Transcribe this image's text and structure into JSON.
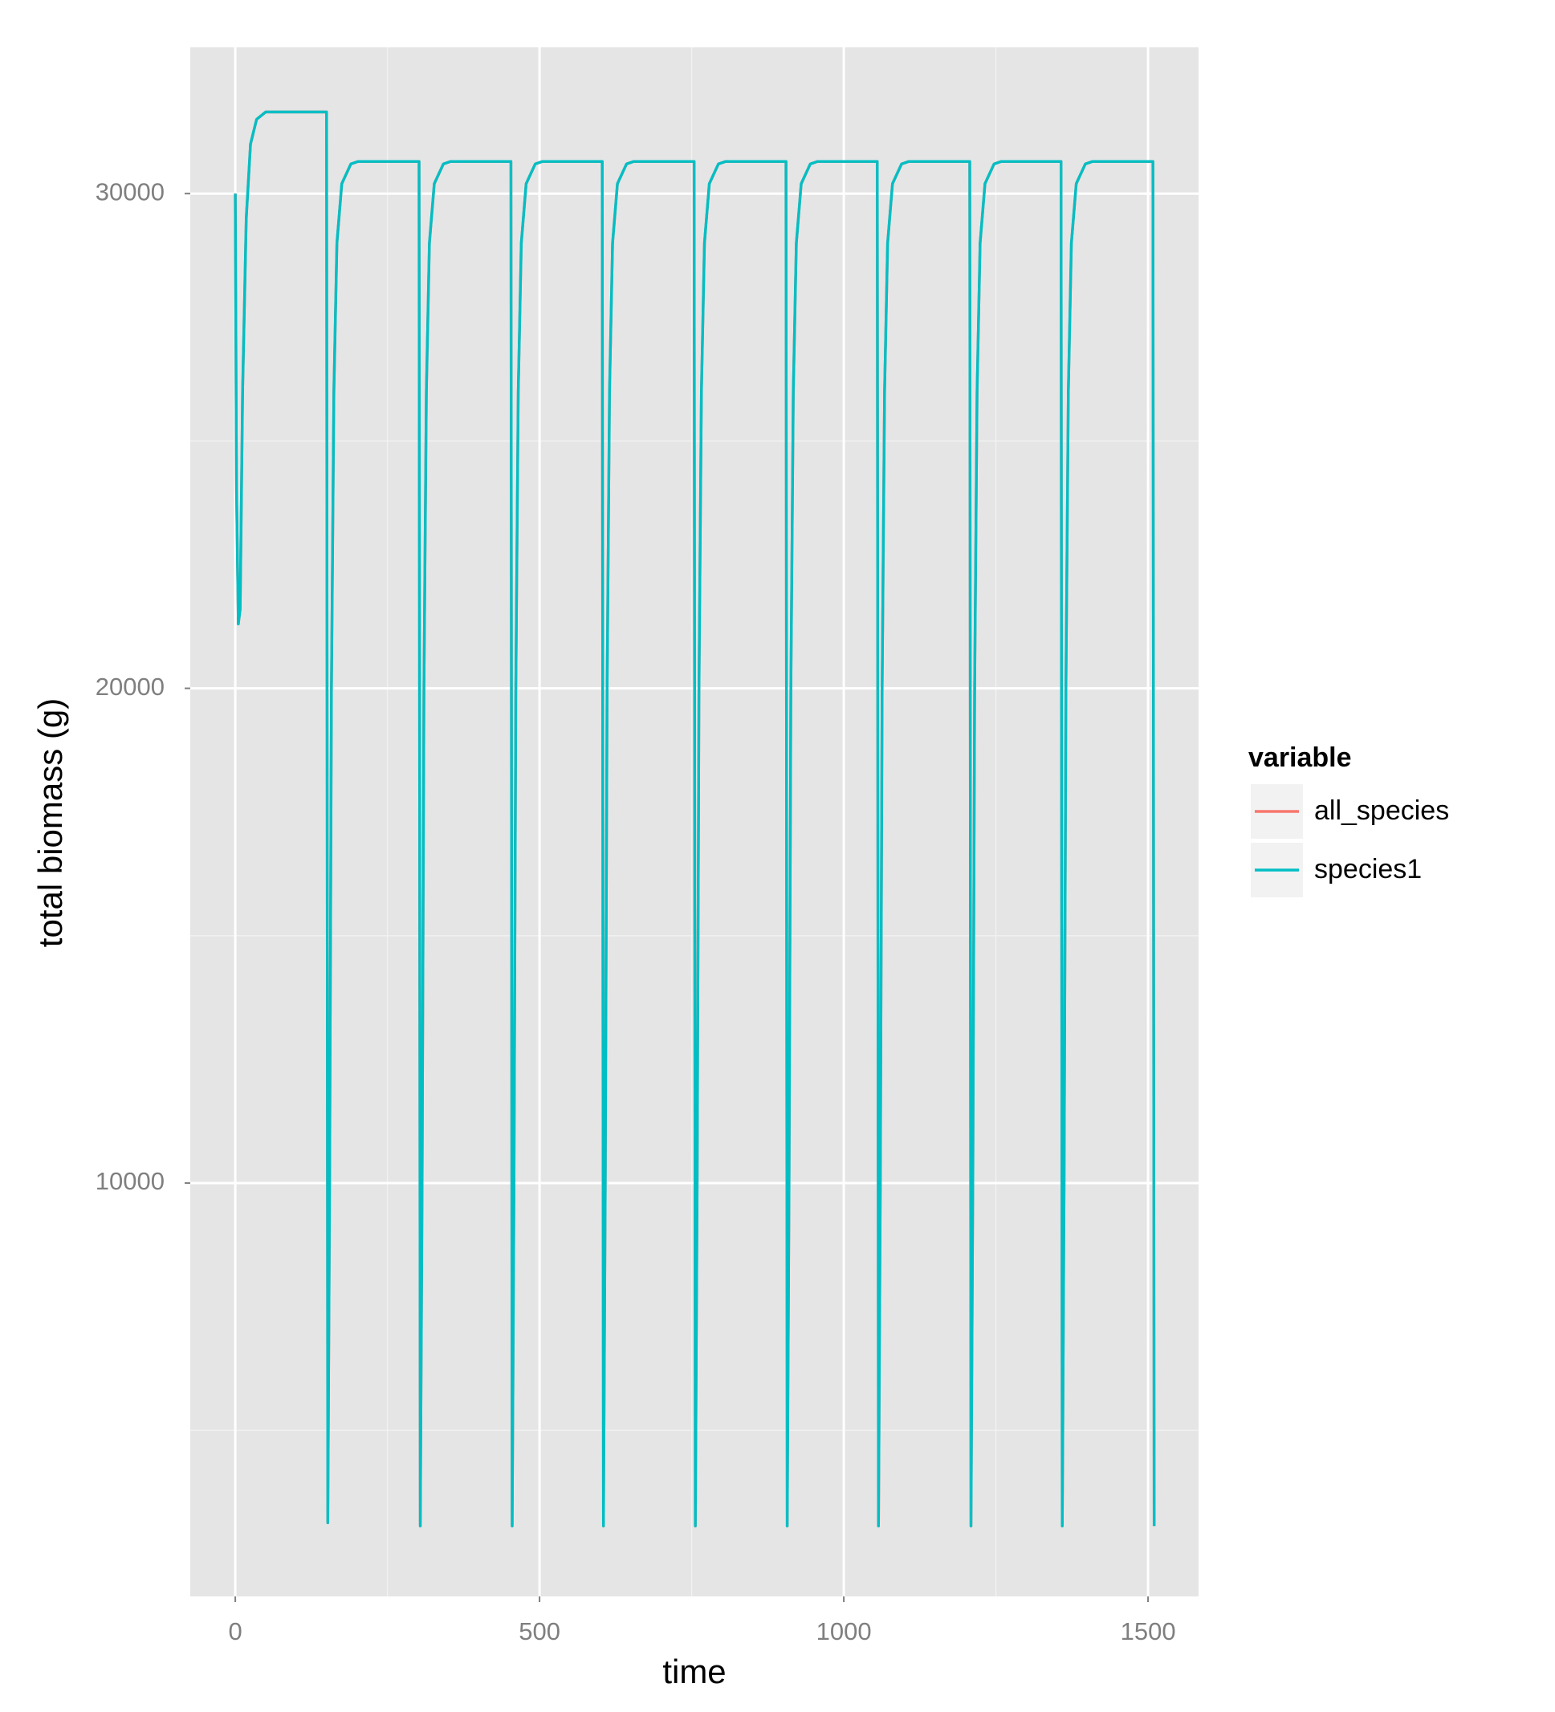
{
  "chart_data": {
    "type": "line",
    "x_label": "time",
    "y_label": "total biomass (g)",
    "legend_title": "variable",
    "legend_position": "right",
    "xlim": [
      -74,
      1583
    ],
    "ylim": [
      1644,
      32956
    ],
    "xticks": [
      0,
      500,
      1000,
      1500
    ],
    "yticks": [
      10000,
      20000,
      30000
    ],
    "xminor": [
      250,
      750,
      1250
    ],
    "yminor": [
      5000,
      15000,
      25000
    ],
    "grid": true,
    "x": [
      0,
      2,
      5,
      8,
      12,
      18,
      25,
      35,
      50,
      150,
      152,
      155,
      158,
      162,
      167,
      175,
      190,
      202,
      302,
      304,
      307,
      310,
      314,
      319,
      327,
      342,
      354,
      453,
      455,
      458,
      461,
      465,
      470,
      478,
      493,
      505,
      603,
      605,
      608,
      611,
      615,
      620,
      628,
      643,
      655,
      754,
      756,
      759,
      762,
      766,
      771,
      779,
      794,
      806,
      905,
      907,
      910,
      913,
      917,
      922,
      930,
      945,
      957,
      1055,
      1057,
      1060,
      1063,
      1067,
      1072,
      1080,
      1095,
      1107,
      1207,
      1209,
      1212,
      1215,
      1219,
      1224,
      1232,
      1247,
      1259,
      1357,
      1359,
      1362,
      1365,
      1369,
      1374,
      1382,
      1397,
      1409,
      1508,
      1510
    ],
    "series": [
      {
        "name": "all_species",
        "color": "#F8766D",
        "values": [
          30000,
          24000,
          21300,
          21600,
          26000,
          29500,
          31000,
          31500,
          31650,
          31650,
          3133,
          10000,
          20000,
          26000,
          29000,
          30200,
          30600,
          30650,
          30650,
          3067,
          10000,
          20000,
          26000,
          29000,
          30200,
          30600,
          30650,
          30650,
          3067,
          10000,
          20000,
          26000,
          29000,
          30200,
          30600,
          30650,
          30650,
          3067,
          10000,
          20000,
          26000,
          29000,
          30200,
          30600,
          30650,
          30650,
          3067,
          10000,
          20000,
          26000,
          29000,
          30200,
          30600,
          30650,
          30650,
          3067,
          10000,
          20000,
          26000,
          29000,
          30200,
          30600,
          30650,
          30650,
          3067,
          10000,
          20000,
          26000,
          29000,
          30200,
          30600,
          30650,
          30650,
          3067,
          10000,
          20000,
          26000,
          29000,
          30200,
          30600,
          30650,
          30650,
          3067,
          10000,
          20000,
          26000,
          29000,
          30200,
          30600,
          30650,
          30650,
          3067
        ]
      },
      {
        "name": "species1",
        "color": "#00BFC4",
        "values": [
          30000,
          24000,
          21300,
          21600,
          26000,
          29500,
          31000,
          31500,
          31650,
          31650,
          3133,
          10000,
          20000,
          26000,
          29000,
          30200,
          30600,
          30650,
          30650,
          3067,
          10000,
          20000,
          26000,
          29000,
          30200,
          30600,
          30650,
          30650,
          3067,
          10000,
          20000,
          26000,
          29000,
          30200,
          30600,
          30650,
          30650,
          3067,
          10000,
          20000,
          26000,
          29000,
          30200,
          30600,
          30650,
          30650,
          3067,
          10000,
          20000,
          26000,
          29000,
          30200,
          30600,
          30650,
          30650,
          3067,
          10000,
          20000,
          26000,
          29000,
          30200,
          30600,
          30650,
          30650,
          3067,
          10000,
          20000,
          26000,
          29000,
          30200,
          30600,
          30650,
          30650,
          3067,
          10000,
          20000,
          26000,
          29000,
          30200,
          30600,
          30650,
          30650,
          3067,
          10000,
          20000,
          26000,
          29000,
          30200,
          30600,
          30650,
          30650,
          3067
        ]
      }
    ]
  }
}
